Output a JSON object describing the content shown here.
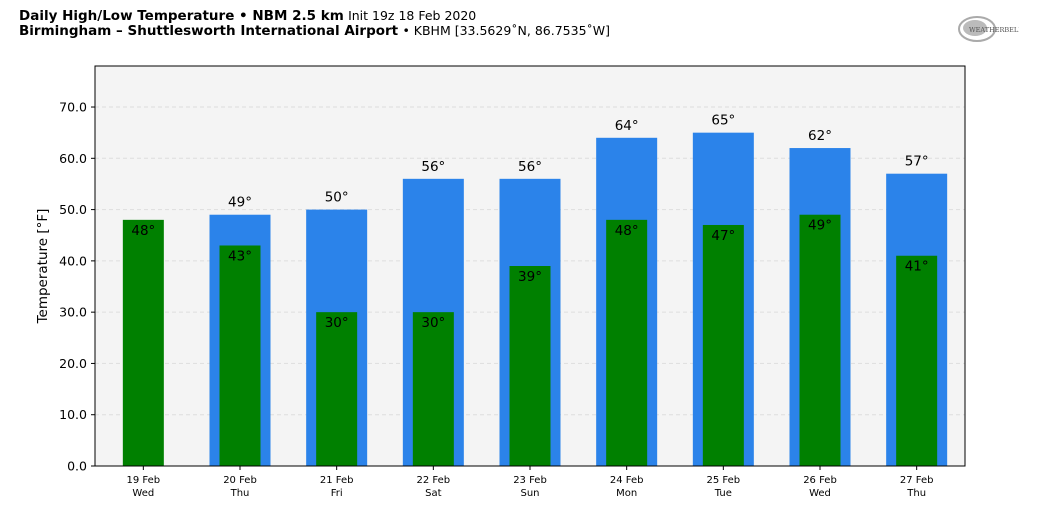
{
  "header": {
    "title_bold": "Daily High/Low Temperature • NBM 2.5 km",
    "init": "Init 19z 18 Feb 2020",
    "location_bold": "Birmingham – Shuttlesworth International Airport",
    "station": "• KBHM [33.5629˚N, 86.7535˚W]"
  },
  "logo": {
    "text": "WeatherBELL"
  },
  "chart_data": {
    "type": "bar",
    "title": "Daily High/Low Temperature",
    "ylabel": "Temperature [°F]",
    "xlabel": "",
    "ylim": [
      0,
      78
    ],
    "yticks": [
      0,
      10,
      20,
      30,
      40,
      50,
      60,
      70
    ],
    "categories": [
      [
        "19 Feb",
        "Wed"
      ],
      [
        "20 Feb",
        "Thu"
      ],
      [
        "21 Feb",
        "Fri"
      ],
      [
        "22 Feb",
        "Sat"
      ],
      [
        "23 Feb",
        "Sun"
      ],
      [
        "24 Feb",
        "Mon"
      ],
      [
        "25 Feb",
        "Tue"
      ],
      [
        "26 Feb",
        "Wed"
      ],
      [
        "27 Feb",
        "Thu"
      ]
    ],
    "series": [
      {
        "name": "High",
        "color": "#2b83ea",
        "values": [
          null,
          49,
          50,
          56,
          56,
          64,
          65,
          62,
          57
        ]
      },
      {
        "name": "Low",
        "color": "#008000",
        "values": [
          48,
          43,
          30,
          30,
          39,
          48,
          47,
          49,
          41
        ]
      }
    ],
    "grid": true
  }
}
